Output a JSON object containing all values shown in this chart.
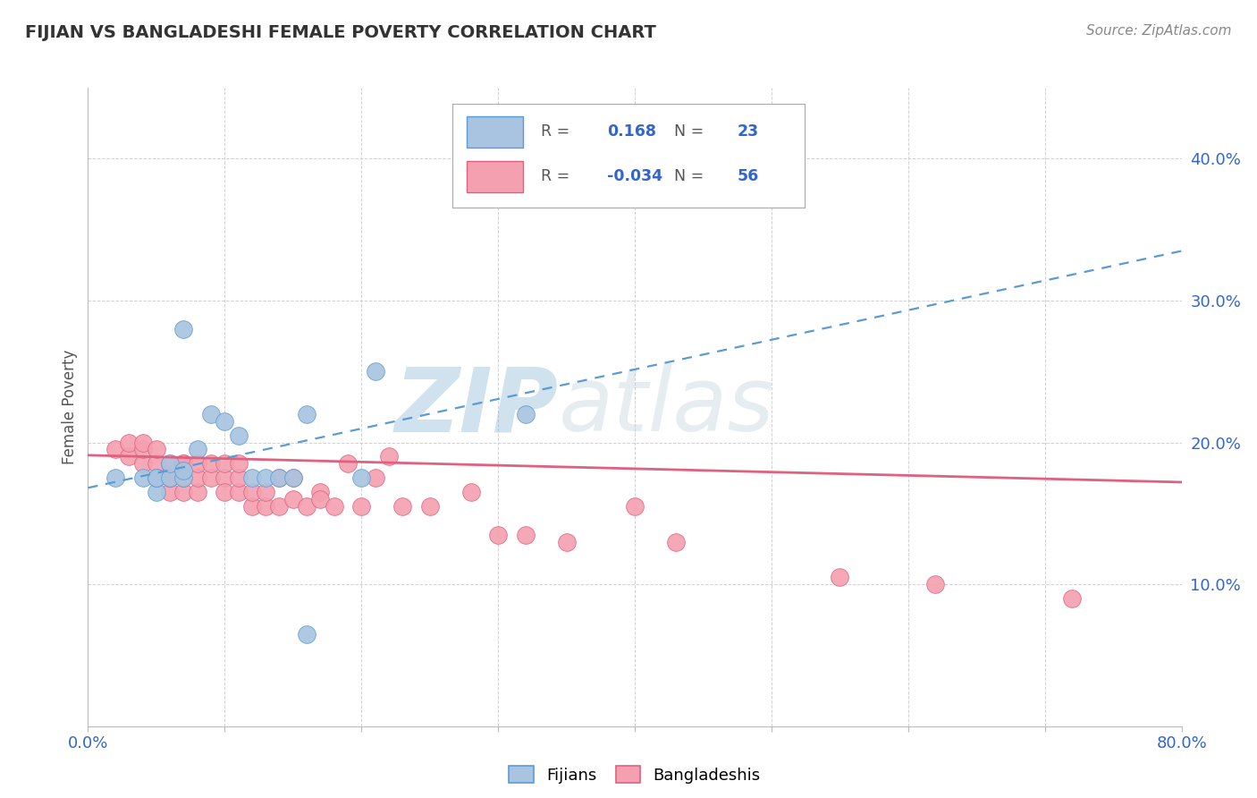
{
  "title": "FIJIAN VS BANGLADESHI FEMALE POVERTY CORRELATION CHART",
  "source": "Source: ZipAtlas.com",
  "ylabel": "Female Poverty",
  "xlim": [
    0.0,
    0.8
  ],
  "ylim": [
    0.0,
    0.45
  ],
  "xtick_positions": [
    0.0,
    0.1,
    0.2,
    0.3,
    0.4,
    0.5,
    0.6,
    0.7,
    0.8
  ],
  "xticklabels": [
    "0.0%",
    "",
    "",
    "",
    "",
    "",
    "",
    "",
    "80.0%"
  ],
  "ytick_positions": [
    0.1,
    0.2,
    0.3,
    0.4
  ],
  "ytick_labels": [
    "10.0%",
    "20.0%",
    "30.0%",
    "40.0%"
  ],
  "grid_color": "#cccccc",
  "background": "#ffffff",
  "fijian_color": "#a8c4e0",
  "bangladeshi_color": "#f4a0b0",
  "fijian_line_color": "#5b9bd5",
  "bangladeshi_line_color": "#e06080",
  "r_fijian": 0.168,
  "n_fijian": 23,
  "r_bangladeshi": -0.034,
  "n_bangladeshi": 56,
  "fijian_x": [
    0.02,
    0.04,
    0.05,
    0.05,
    0.05,
    0.06,
    0.06,
    0.07,
    0.07,
    0.07,
    0.08,
    0.09,
    0.1,
    0.11,
    0.12,
    0.13,
    0.14,
    0.15,
    0.16,
    0.16,
    0.2,
    0.21,
    0.32
  ],
  "fijian_y": [
    0.175,
    0.175,
    0.165,
    0.175,
    0.175,
    0.175,
    0.185,
    0.175,
    0.18,
    0.28,
    0.195,
    0.22,
    0.215,
    0.205,
    0.175,
    0.175,
    0.175,
    0.175,
    0.065,
    0.22,
    0.175,
    0.25,
    0.22
  ],
  "bangladeshi_x": [
    0.02,
    0.03,
    0.03,
    0.04,
    0.04,
    0.04,
    0.05,
    0.05,
    0.05,
    0.05,
    0.06,
    0.06,
    0.06,
    0.06,
    0.07,
    0.07,
    0.07,
    0.07,
    0.08,
    0.08,
    0.08,
    0.09,
    0.09,
    0.1,
    0.1,
    0.1,
    0.11,
    0.11,
    0.11,
    0.12,
    0.12,
    0.13,
    0.13,
    0.14,
    0.14,
    0.15,
    0.15,
    0.16,
    0.17,
    0.17,
    0.18,
    0.19,
    0.2,
    0.21,
    0.22,
    0.23,
    0.25,
    0.28,
    0.3,
    0.32,
    0.35,
    0.4,
    0.43,
    0.55,
    0.62,
    0.72
  ],
  "bangladeshi_y": [
    0.195,
    0.19,
    0.2,
    0.185,
    0.195,
    0.2,
    0.175,
    0.185,
    0.195,
    0.175,
    0.165,
    0.175,
    0.185,
    0.175,
    0.185,
    0.165,
    0.175,
    0.185,
    0.165,
    0.175,
    0.185,
    0.175,
    0.185,
    0.175,
    0.185,
    0.165,
    0.165,
    0.175,
    0.185,
    0.155,
    0.165,
    0.155,
    0.165,
    0.155,
    0.175,
    0.16,
    0.175,
    0.155,
    0.165,
    0.16,
    0.155,
    0.185,
    0.155,
    0.175,
    0.19,
    0.155,
    0.155,
    0.165,
    0.135,
    0.135,
    0.13,
    0.155,
    0.13,
    0.105,
    0.1,
    0.09
  ],
  "watermark_zip": "ZIP",
  "watermark_atlas": "atlas",
  "watermark_color": "#c8d8e8",
  "legend_label1": "Fijians",
  "legend_label2": "Bangladeshis",
  "fijian_trend_x": [
    0.0,
    0.8
  ],
  "fijian_trend_y": [
    0.168,
    0.335
  ],
  "bangladeshi_trend_x": [
    0.0,
    0.8
  ],
  "bangladeshi_trend_y": [
    0.191,
    0.172
  ]
}
